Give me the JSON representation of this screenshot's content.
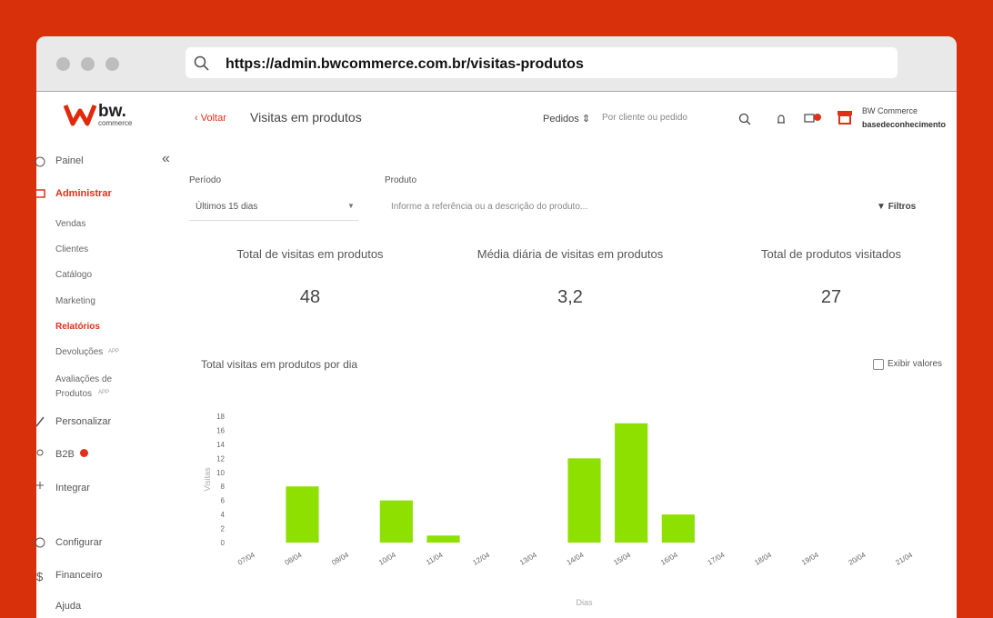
{
  "browser": {
    "url": "https://admin.bwcommerce.com.br/visitas-produtos"
  },
  "logo": {
    "name": "bw.",
    "sub": "commerce"
  },
  "sidebar": {
    "items": [
      "Painel",
      "Administrar",
      "Vendas",
      "Clientes",
      "Catálogo",
      "Marketing",
      "Relatórios",
      "Devoluções",
      "Avaliações de Produtos",
      "Personalizar",
      "B2B",
      "Integrar",
      "Configurar",
      "Financeiro",
      "Ajuda"
    ],
    "app_tag": "APP"
  },
  "header": {
    "back": "Voltar",
    "title": "Visitas em produtos",
    "orders": "Pedidos",
    "search_placeholder": "Por cliente ou pedido",
    "store": "BW Commerce",
    "user": "basedeconhecimento"
  },
  "filters": {
    "period_label": "Período",
    "period_value": "Últimos 15 dias",
    "product_label": "Produto",
    "product_placeholder": "Informe a referência ou a descrição do produto...",
    "filters_button": "Filtros"
  },
  "stats": [
    {
      "label": "Total de visitas em produtos",
      "value": "48"
    },
    {
      "label": "Média diária de visitas em produtos",
      "value": "3,2"
    },
    {
      "label": "Total de produtos visitados",
      "value": "27"
    }
  ],
  "chart_data": {
    "type": "bar",
    "title": "Total visitas em produtos por dia",
    "toggle": "Exibir valores",
    "y_label": "Visitas",
    "x_label": "Dias",
    "categories": [
      "07/04",
      "08/04",
      "09/04",
      "10/04",
      "11/04",
      "12/04",
      "13/04",
      "14/04",
      "15/04",
      "16/04",
      "17/04",
      "18/04",
      "19/04",
      "20/04",
      "21/04"
    ],
    "values": [
      0,
      8,
      0,
      6,
      1,
      0,
      0,
      12,
      17,
      4,
      0,
      0,
      0,
      0,
      0
    ],
    "color": "#8ee000",
    "ylim": [
      0,
      18
    ],
    "yticks": [
      0,
      2,
      4,
      6,
      8,
      10,
      12,
      14,
      16,
      18
    ]
  }
}
